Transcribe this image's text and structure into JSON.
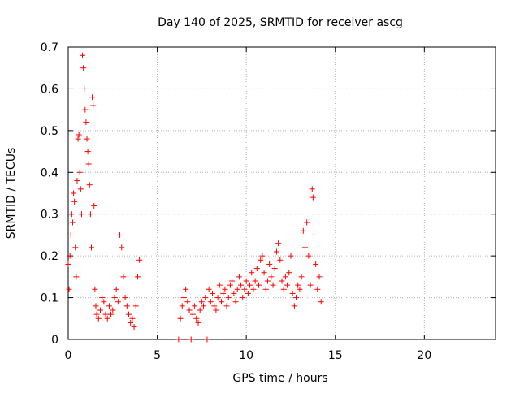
{
  "chart_data": {
    "type": "scatter",
    "title": "Day 140 of 2025, SRMTID for receiver ascg",
    "xlabel": "GPS time / hours",
    "ylabel": "SRMTID / TECUs",
    "xlim": [
      0,
      24
    ],
    "ylim": [
      0,
      0.7
    ],
    "xticks": [
      0,
      5,
      10,
      15,
      20
    ],
    "xtick_labels": [
      "0",
      "5",
      "10",
      "15",
      "20"
    ],
    "yticks": [
      0,
      0.1,
      0.2,
      0.3,
      0.4,
      0.5,
      0.6,
      0.7
    ],
    "ytick_labels": [
      "0",
      "0.1",
      "0.2",
      "0.3",
      "0.4",
      "0.5",
      "0.6",
      "0.7"
    ],
    "grid": true,
    "marker": "+",
    "marker_color": "#ff0000",
    "series": [
      {
        "name": "SRMTID",
        "color": "#ff0000",
        "points": [
          [
            0.0,
            0.18
          ],
          [
            0.05,
            0.12
          ],
          [
            0.1,
            0.2
          ],
          [
            0.15,
            0.25
          ],
          [
            0.2,
            0.3
          ],
          [
            0.25,
            0.28
          ],
          [
            0.3,
            0.35
          ],
          [
            0.35,
            0.33
          ],
          [
            0.4,
            0.22
          ],
          [
            0.45,
            0.15
          ],
          [
            0.5,
            0.38
          ],
          [
            0.55,
            0.48
          ],
          [
            0.6,
            0.49
          ],
          [
            0.65,
            0.4
          ],
          [
            0.7,
            0.36
          ],
          [
            0.75,
            0.3
          ],
          [
            0.8,
            0.68
          ],
          [
            0.85,
            0.65
          ],
          [
            0.9,
            0.6
          ],
          [
            0.95,
            0.55
          ],
          [
            1.0,
            0.52
          ],
          [
            1.05,
            0.48
          ],
          [
            1.1,
            0.45
          ],
          [
            1.15,
            0.42
          ],
          [
            1.2,
            0.37
          ],
          [
            1.25,
            0.3
          ],
          [
            1.3,
            0.22
          ],
          [
            1.35,
            0.58
          ],
          [
            1.4,
            0.56
          ],
          [
            1.45,
            0.32
          ],
          [
            1.5,
            0.12
          ],
          [
            1.55,
            0.08
          ],
          [
            1.6,
            0.06
          ],
          [
            1.7,
            0.05
          ],
          [
            1.8,
            0.07
          ],
          [
            1.9,
            0.1
          ],
          [
            2.0,
            0.09
          ],
          [
            2.1,
            0.06
          ],
          [
            2.2,
            0.05
          ],
          [
            2.3,
            0.08
          ],
          [
            2.4,
            0.06
          ],
          [
            2.5,
            0.07
          ],
          [
            2.6,
            0.1
          ],
          [
            2.7,
            0.12
          ],
          [
            2.8,
            0.09
          ],
          [
            2.9,
            0.25
          ],
          [
            3.0,
            0.22
          ],
          [
            3.1,
            0.15
          ],
          [
            3.2,
            0.1
          ],
          [
            3.3,
            0.08
          ],
          [
            3.4,
            0.06
          ],
          [
            3.5,
            0.04
          ],
          [
            3.6,
            0.05
          ],
          [
            3.7,
            0.03
          ],
          [
            3.8,
            0.08
          ],
          [
            3.9,
            0.15
          ],
          [
            4.0,
            0.19
          ],
          [
            6.2,
            0.0
          ],
          [
            6.9,
            0.0
          ],
          [
            7.8,
            0.0
          ],
          [
            6.3,
            0.05
          ],
          [
            6.4,
            0.08
          ],
          [
            6.5,
            0.1
          ],
          [
            6.6,
            0.12
          ],
          [
            6.7,
            0.09
          ],
          [
            6.8,
            0.07
          ],
          [
            7.0,
            0.06
          ],
          [
            7.1,
            0.08
          ],
          [
            7.2,
            0.05
          ],
          [
            7.3,
            0.04
          ],
          [
            7.4,
            0.07
          ],
          [
            7.5,
            0.09
          ],
          [
            7.6,
            0.08
          ],
          [
            7.7,
            0.1
          ],
          [
            7.9,
            0.12
          ],
          [
            8.0,
            0.09
          ],
          [
            8.1,
            0.11
          ],
          [
            8.2,
            0.08
          ],
          [
            8.3,
            0.07
          ],
          [
            8.4,
            0.1
          ],
          [
            8.5,
            0.13
          ],
          [
            8.6,
            0.09
          ],
          [
            8.7,
            0.11
          ],
          [
            8.8,
            0.12
          ],
          [
            8.9,
            0.08
          ],
          [
            9.0,
            0.1
          ],
          [
            9.1,
            0.13
          ],
          [
            9.2,
            0.14
          ],
          [
            9.3,
            0.11
          ],
          [
            9.4,
            0.09
          ],
          [
            9.5,
            0.12
          ],
          [
            9.6,
            0.15
          ],
          [
            9.7,
            0.13
          ],
          [
            9.8,
            0.1
          ],
          [
            9.9,
            0.12
          ],
          [
            10.0,
            0.14
          ],
          [
            10.1,
            0.11
          ],
          [
            10.2,
            0.13
          ],
          [
            10.3,
            0.16
          ],
          [
            10.4,
            0.12
          ],
          [
            10.5,
            0.14
          ],
          [
            10.6,
            0.17
          ],
          [
            10.7,
            0.13
          ],
          [
            10.8,
            0.19
          ],
          [
            10.9,
            0.2
          ],
          [
            11.0,
            0.16
          ],
          [
            11.1,
            0.12
          ],
          [
            11.2,
            0.14
          ],
          [
            11.3,
            0.18
          ],
          [
            11.4,
            0.15
          ],
          [
            11.5,
            0.13
          ],
          [
            11.6,
            0.17
          ],
          [
            11.7,
            0.21
          ],
          [
            11.8,
            0.23
          ],
          [
            11.9,
            0.19
          ],
          [
            12.0,
            0.14
          ],
          [
            12.1,
            0.12
          ],
          [
            12.2,
            0.15
          ],
          [
            12.3,
            0.13
          ],
          [
            12.4,
            0.16
          ],
          [
            12.5,
            0.2
          ],
          [
            12.6,
            0.11
          ],
          [
            12.7,
            0.08
          ],
          [
            12.8,
            0.1
          ],
          [
            12.9,
            0.13
          ],
          [
            13.0,
            0.12
          ],
          [
            13.1,
            0.15
          ],
          [
            13.2,
            0.26
          ],
          [
            13.3,
            0.22
          ],
          [
            13.4,
            0.28
          ],
          [
            13.5,
            0.2
          ],
          [
            13.6,
            0.13
          ],
          [
            13.7,
            0.36
          ],
          [
            13.75,
            0.34
          ],
          [
            13.8,
            0.25
          ],
          [
            13.9,
            0.18
          ],
          [
            14.0,
            0.12
          ],
          [
            14.1,
            0.15
          ],
          [
            14.2,
            0.09
          ]
        ]
      }
    ]
  }
}
